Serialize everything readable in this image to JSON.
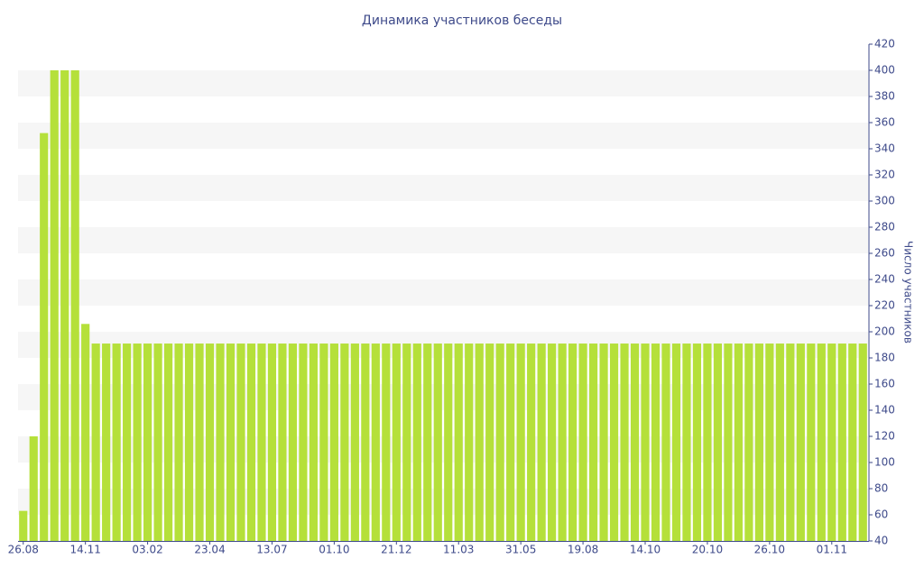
{
  "chart_data": {
    "type": "bar",
    "title": "Динамика участников беседы",
    "y_label": "Число участников",
    "categories": [
      "26.08",
      null,
      null,
      null,
      null,
      null,
      "14.11",
      null,
      null,
      null,
      null,
      null,
      "03.02",
      null,
      null,
      null,
      null,
      null,
      "23.04",
      null,
      null,
      null,
      null,
      null,
      "13.07",
      null,
      null,
      null,
      null,
      null,
      "01.10",
      null,
      null,
      null,
      null,
      null,
      "21.12",
      null,
      null,
      null,
      null,
      null,
      "11.03",
      null,
      null,
      null,
      null,
      null,
      "31.05",
      null,
      null,
      null,
      null,
      null,
      "19.08",
      null,
      null,
      null,
      null,
      null,
      "14.10",
      null,
      null,
      null,
      null,
      null,
      "20.10",
      null,
      null,
      null,
      null,
      null,
      "26.10",
      null,
      null,
      null,
      null,
      null,
      "01.11",
      null,
      null,
      null
    ],
    "values": [
      63,
      120,
      352,
      400,
      400,
      400,
      206,
      191,
      191,
      191,
      191,
      191,
      191,
      191,
      191,
      191,
      191,
      191,
      191,
      191,
      191,
      191,
      191,
      191,
      191,
      191,
      191,
      191,
      191,
      191,
      191,
      191,
      191,
      191,
      191,
      191,
      191,
      191,
      191,
      191,
      191,
      191,
      191,
      191,
      191,
      191,
      191,
      191,
      191,
      191,
      191,
      191,
      191,
      191,
      191,
      191,
      191,
      191,
      191,
      191,
      191,
      191,
      191,
      191,
      191,
      191,
      191,
      191,
      191,
      191,
      191,
      191,
      191,
      191,
      191,
      191,
      191,
      191,
      191,
      191,
      191,
      191
    ],
    "color": "#b5e03a",
    "ylim": [
      40,
      420
    ],
    "yticks": [
      40,
      60,
      80,
      100,
      120,
      140,
      160,
      180,
      200,
      220,
      240,
      260,
      280,
      300,
      320,
      340,
      360,
      380,
      400,
      420
    ],
    "y_axis_side": "right",
    "grid_bands": "#f6f6f6"
  }
}
